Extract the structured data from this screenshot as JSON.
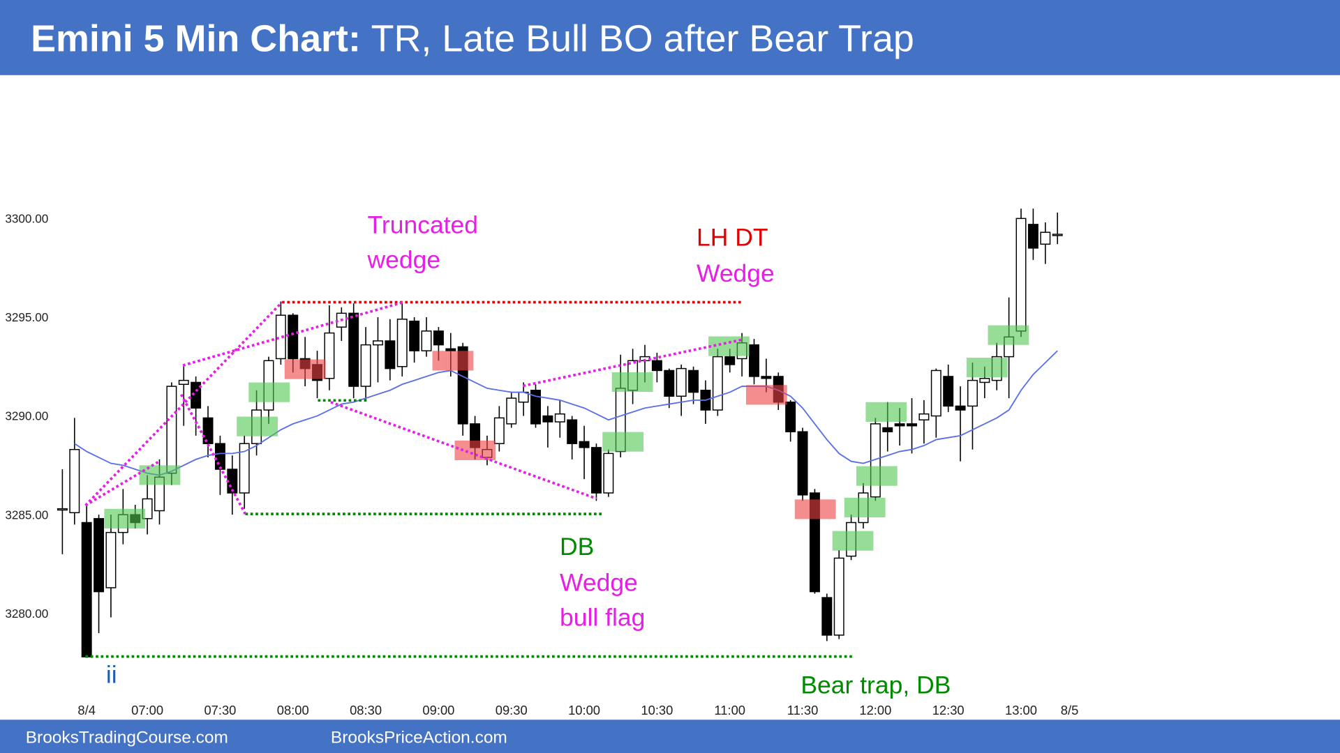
{
  "chart_data": {
    "type": "candlestick",
    "title_bold": "Emini 5 Min Chart:",
    "title": "TR, Late Bull BO after Bear Trap",
    "footer": [
      "BrooksTradingCourse.com",
      "BrooksPriceAction.com"
    ],
    "categories": [
      null,
      null,
      "8/4",
      null,
      null,
      null,
      null,
      "07:00",
      null,
      null,
      null,
      null,
      null,
      "07:30",
      null,
      null,
      null,
      null,
      null,
      "08:00",
      null,
      null,
      null,
      null,
      null,
      "08:30",
      null,
      null,
      null,
      null,
      null,
      "09:00",
      null,
      null,
      null,
      null,
      null,
      "09:30",
      null,
      null,
      null,
      null,
      null,
      "10:00",
      null,
      null,
      null,
      null,
      null,
      "10:30",
      null,
      null,
      null,
      null,
      null,
      "11:00",
      null,
      null,
      null,
      null,
      null,
      "11:30",
      null,
      null,
      null,
      null,
      null,
      "12:00",
      null,
      null,
      null,
      null,
      null,
      "12:30",
      null,
      null,
      null,
      null,
      null,
      "13:00",
      null,
      null,
      null,
      "8/5"
    ],
    "open": [
      3285.3,
      3285.1,
      3284.6,
      3284.8,
      3281.3,
      3284.1,
      3285.0,
      3284.8,
      3285.2,
      3287.1,
      3291.6,
      3291.7,
      3289.9,
      3288.6,
      3287.3,
      3286.1,
      3288.6,
      3290.3,
      3292.9,
      3295.1,
      3292.9,
      3292.6,
      3291.9,
      3294.5,
      3295.2,
      3291.5,
      3293.6,
      3293.8,
      3292.5,
      3294.8,
      3293.3,
      3294.3,
      3293.4,
      3293.5,
      3289.6,
      3287.9,
      3288.6,
      3289.6,
      3290.7,
      3291.3,
      3290.0,
      3289.7,
      3289.8,
      3288.7,
      3288.4,
      3286.1,
      3288.2,
      3291.3,
      3292.8,
      3292.8,
      3292.3,
      3291.0,
      3292.3,
      3291.3,
      3290.3,
      3293.0,
      3292.9,
      3293.6,
      3292.0,
      3292.0,
      3290.7,
      3289.2,
      3286.1,
      3280.8,
      3278.9,
      3282.9,
      3284.6,
      3285.9,
      3289.4,
      3289.6,
      3289.6,
      3289.8,
      3290.0,
      3292.0,
      3290.5,
      3290.5,
      3291.7,
      3291.8,
      3293.0,
      3294.3,
      3299.7,
      3298.7,
      3299.2,
      null
    ],
    "high": [
      3287.3,
      3289.9,
      3285.5,
      3285.0,
      3285.0,
      3286.3,
      3285.5,
      3287.0,
      3287.8,
      3291.7,
      3292.6,
      3292.0,
      3290.5,
      3289.0,
      3288.0,
      3289.0,
      3291.3,
      3293.0,
      3295.8,
      3295.2,
      3294.0,
      3293.3,
      3295.6,
      3295.5,
      3295.7,
      3294.5,
      3295.0,
      3294.9,
      3295.7,
      3295.0,
      3295.0,
      3294.5,
      3294.2,
      3293.7,
      3290.0,
      3289.0,
      3290.5,
      3291.2,
      3291.7,
      3291.6,
      3290.5,
      3290.8,
      3290.0,
      3289.5,
      3288.6,
      3288.3,
      3293.1,
      3293.4,
      3293.6,
      3293.2,
      3292.4,
      3292.6,
      3292.5,
      3291.8,
      3293.4,
      3293.4,
      3294.2,
      3293.9,
      3292.9,
      3292.2,
      3290.8,
      3289.4,
      3286.3,
      3281.0,
      3283.2,
      3285.0,
      3286.6,
      3289.9,
      3290.7,
      3290.4,
      3290.9,
      3290.8,
      3292.4,
      3292.6,
      3291.5,
      3292.7,
      3292.5,
      3293.7,
      3296.0,
      3300.5,
      3300.5,
      3299.8,
      3300.3,
      null
    ],
    "low": [
      3283.0,
      3284.5,
      3277.8,
      3279.0,
      3279.8,
      3283.5,
      3284.3,
      3284.0,
      3284.5,
      3286.5,
      3289.5,
      3289.0,
      3287.9,
      3286.0,
      3285.0,
      3285.3,
      3288.0,
      3289.6,
      3292.6,
      3292.2,
      3291.5,
      3290.9,
      3291.3,
      3293.8,
      3290.9,
      3290.8,
      3291.7,
      3291.8,
      3292.0,
      3292.7,
      3293.0,
      3292.8,
      3292.0,
      3289.0,
      3287.8,
      3287.5,
      3288.2,
      3289.4,
      3290.0,
      3289.4,
      3288.4,
      3288.9,
      3287.8,
      3286.8,
      3285.7,
      3285.9,
      3287.9,
      3290.6,
      3291.7,
      3291.7,
      3290.4,
      3290.0,
      3290.6,
      3289.6,
      3290.0,
      3292.2,
      3292.0,
      3291.6,
      3291.2,
      3290.3,
      3288.7,
      3285.7,
      3281.0,
      3278.6,
      3278.7,
      3282.7,
      3284.3,
      3285.7,
      3288.2,
      3288.5,
      3288.1,
      3288.6,
      3288.9,
      3290.2,
      3287.7,
      3288.3,
      3290.9,
      3291.3,
      3290.9,
      3294.0,
      3297.9,
      3297.7,
      3298.7,
      null
    ],
    "close": [
      3285.3,
      3288.3,
      3277.8,
      3281.1,
      3284.1,
      3285.0,
      3284.6,
      3285.8,
      3286.9,
      3291.5,
      3291.8,
      3290.4,
      3288.6,
      3287.3,
      3286.1,
      3288.6,
      3290.3,
      3292.8,
      3295.1,
      3292.9,
      3292.4,
      3291.8,
      3294.2,
      3295.2,
      3291.5,
      3293.6,
      3293.8,
      3292.4,
      3294.9,
      3293.3,
      3294.3,
      3293.6,
      3293.3,
      3289.6,
      3288.4,
      3288.3,
      3289.9,
      3290.9,
      3291.2,
      3289.6,
      3289.7,
      3290.1,
      3288.6,
      3288.4,
      3286.1,
      3288.1,
      3291.4,
      3292.8,
      3293.0,
      3292.3,
      3291.0,
      3292.4,
      3291.2,
      3290.3,
      3293.0,
      3292.6,
      3293.7,
      3292.0,
      3291.9,
      3290.7,
      3289.2,
      3286.0,
      3281.1,
      3278.9,
      3282.8,
      3284.6,
      3286.1,
      3289.6,
      3289.2,
      3289.5,
      3289.5,
      3290.1,
      3292.3,
      3290.5,
      3290.3,
      3291.8,
      3291.9,
      3293.0,
      3294.0,
      3300.0,
      3298.5,
      3299.3,
      3299.2,
      null
    ],
    "ma_values": [
      null,
      3288.6,
      3288.2,
      3287.9,
      3287.6,
      3287.5,
      3287.3,
      3287.1,
      3287.0,
      3287.2,
      3287.5,
      3287.8,
      3288.0,
      3288.1,
      3288.1,
      3288.2,
      3288.5,
      3288.9,
      3289.3,
      3289.6,
      3289.8,
      3290.0,
      3290.3,
      3290.6,
      3290.7,
      3290.9,
      3291.1,
      3291.3,
      3291.6,
      3291.8,
      3292.0,
      3292.2,
      3292.3,
      3292.0,
      3291.7,
      3291.4,
      3291.3,
      3291.2,
      3291.2,
      3291.0,
      3290.9,
      3290.8,
      3290.6,
      3290.4,
      3290.1,
      3289.8,
      3290.0,
      3290.2,
      3290.4,
      3290.5,
      3290.6,
      3290.7,
      3290.8,
      3290.8,
      3291.0,
      3291.2,
      3291.5,
      3291.5,
      3291.5,
      3291.3,
      3291.0,
      3290.4,
      3289.6,
      3288.8,
      3288.1,
      3287.7,
      3287.6,
      3287.8,
      3288.0,
      3288.2,
      3288.3,
      3288.5,
      3288.8,
      3288.9,
      3289.0,
      3289.3,
      3289.6,
      3289.9,
      3290.3,
      3291.3,
      3292.1,
      3292.7,
      3293.3,
      null
    ],
    "ma_color": "#5a6ee8",
    "up_color": "#ffffff",
    "down_color": "#000000",
    "ylim": [
      3276,
      3307
    ],
    "yticks": [
      {
        "value": 3280,
        "label": "3280.00"
      },
      {
        "value": 3285,
        "label": "3285.00"
      },
      {
        "value": 3290,
        "label": "3290.00"
      },
      {
        "value": 3295,
        "label": "3295.00"
      },
      {
        "value": 3300,
        "label": "3300.00"
      }
    ],
    "annotations": [
      {
        "text": "Truncated",
        "color": "#e61ee6"
      },
      {
        "text": "wedge",
        "color": "#e61ee6"
      },
      {
        "text": "LH DT",
        "color": "#e00000"
      },
      {
        "text": "Wedge",
        "color": "#e61ee6"
      },
      {
        "text": "DB",
        "color": "#008a00"
      },
      {
        "text": "Wedge",
        "color": "#e61ee6"
      },
      {
        "text": "bull flag",
        "color": "#e61ee6"
      },
      {
        "text": "ii",
        "color": "#1f5fb0"
      },
      {
        "text": "Bear trap, DB",
        "color": "#008a00"
      }
    ]
  }
}
